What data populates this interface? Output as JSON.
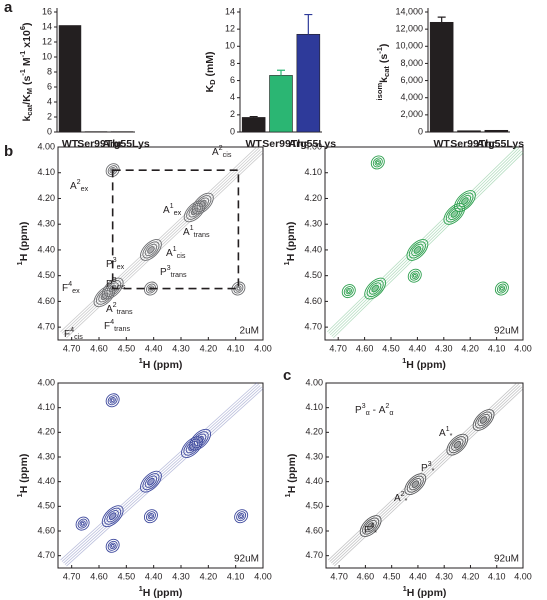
{
  "panel_labels": [
    "a",
    "b",
    "c"
  ],
  "chart_data": [
    {
      "type": "bar",
      "ylabel": [
        {
          "text": "k"
        },
        {
          "sub": "cat"
        },
        {
          "text": "/K"
        },
        {
          "sub": "M"
        },
        {
          "text": " (s"
        },
        {
          "sup": "-1"
        },
        {
          "text": " M"
        },
        {
          "sup": "-1"
        },
        {
          "text": " x10"
        },
        {
          "sup": "6"
        },
        {
          "text": ")"
        }
      ],
      "categories": [
        "WT",
        "Ser99Thr",
        "Arg55Lys"
      ],
      "values": [
        14.2,
        0.05,
        0.05
      ],
      "colors": [
        "#231f20",
        "#231f20",
        "#231f20"
      ],
      "ylim": [
        0,
        16
      ],
      "yticks": [
        0,
        2,
        4,
        6,
        8,
        10,
        12,
        14,
        16
      ]
    },
    {
      "type": "bar",
      "ylabel": [
        {
          "text": "K"
        },
        {
          "sub": "D"
        },
        {
          "text": " (mM)"
        }
      ],
      "categories": [
        "WT",
        "Ser99Thr",
        "Arg55Lys"
      ],
      "values": [
        1.7,
        6.6,
        11.4
      ],
      "errors": [
        0.1,
        0.6,
        2.3
      ],
      "colors": [
        "#231f20",
        "#2bb673",
        "#2e3a9a"
      ],
      "ylim": [
        0,
        14
      ],
      "yticks": [
        0,
        2,
        4,
        6,
        8,
        10,
        12,
        14
      ]
    },
    {
      "type": "bar",
      "ylabel": [
        {
          "sup": "isom"
        },
        {
          "text": "k"
        },
        {
          "sub": "cat"
        },
        {
          "text": " (s"
        },
        {
          "sup": "-1"
        },
        {
          "text": ")"
        }
      ],
      "categories": [
        "WT",
        "Ser99Thr",
        "Arg55Lys"
      ],
      "values": [
        12800,
        150,
        200
      ],
      "errors": [
        600,
        0,
        0
      ],
      "colors": [
        "#231f20",
        "#231f20",
        "#231f20"
      ],
      "ylim": [
        0,
        14000
      ],
      "yticks": [
        0,
        {
          "value": 2000,
          "label": "2,000"
        },
        {
          "value": 4000,
          "label": "4,000"
        },
        {
          "value": 6000,
          "label": "6,000"
        },
        {
          "value": 8000,
          "label": "8,000"
        },
        {
          "value": 10000,
          "label": "10,000"
        },
        {
          "value": 12000,
          "label": "12,000"
        },
        {
          "value": 14000,
          "label": "14,000"
        }
      ]
    },
    {
      "type": "contour",
      "color": "#6d6e71",
      "concentration": "2uM",
      "xlabel": [
        {
          "sup": "1"
        },
        {
          "text": "H (ppm)"
        }
      ],
      "ylabel": [
        {
          "sup": "1"
        },
        {
          "text": "H (ppm)"
        }
      ],
      "xlim": [
        4.75,
        4.0
      ],
      "ylim": [
        4.0,
        4.75
      ],
      "xticks": [
        {
          "value": 4.7,
          "label": "4.70"
        },
        {
          "value": 4.6,
          "label": "4.60"
        },
        {
          "value": 4.5,
          "label": "4.50"
        },
        {
          "value": 4.4,
          "label": "4.40"
        },
        {
          "value": 4.3,
          "label": "4.30"
        },
        {
          "value": 4.2,
          "label": "4.20"
        },
        {
          "value": 4.1,
          "label": "4.10"
        },
        {
          "value": 4.0,
          "label": "4.00"
        }
      ],
      "yticks": [
        {
          "value": 4.0,
          "label": "4.00"
        },
        {
          "value": 4.1,
          "label": "4.10"
        },
        {
          "value": 4.2,
          "label": "4.20"
        },
        {
          "value": 4.3,
          "label": "4.30"
        },
        {
          "value": 4.4,
          "label": "4.40"
        },
        {
          "value": 4.5,
          "label": "4.50"
        },
        {
          "value": 4.6,
          "label": "4.60"
        },
        {
          "value": 4.7,
          "label": "4.70"
        }
      ],
      "x": [
        4.58,
        4.55,
        4.41,
        4.25,
        4.22,
        4.55,
        4.09,
        4.41
      ],
      "y": [
        4.58,
        4.55,
        4.4,
        4.25,
        4.22,
        4.09,
        4.55,
        4.55
      ],
      "annotations": [
        [
          {
            "text": "A"
          },
          {
            "sup": "2"
          },
          {
            "sub": "ex"
          }
        ],
        [
          {
            "text": "A"
          },
          {
            "sup": "2"
          },
          {
            "sub": "cis"
          }
        ],
        [
          {
            "text": "A"
          },
          {
            "sup": "1"
          },
          {
            "sub": "ex"
          }
        ],
        [
          {
            "text": "A"
          },
          {
            "sup": "1"
          },
          {
            "sub": "trans"
          }
        ],
        [
          {
            "text": "A"
          },
          {
            "sup": "1"
          },
          {
            "sub": "cis"
          }
        ],
        [
          {
            "text": "P"
          },
          {
            "sup": "3"
          },
          {
            "sub": "ex"
          }
        ],
        [
          {
            "text": "P"
          },
          {
            "sup": "3"
          },
          {
            "sub": "trans"
          }
        ],
        [
          {
            "text": "P"
          },
          {
            "sup": "3"
          },
          {
            "sub": "cis"
          }
        ],
        [
          {
            "text": "F"
          },
          {
            "sup": "4"
          },
          {
            "sub": "ex"
          }
        ],
        [
          {
            "text": "A"
          },
          {
            "sup": "2"
          },
          {
            "sub": "trans"
          }
        ],
        [
          {
            "text": "F"
          },
          {
            "sup": "4"
          },
          {
            "sub": "trans"
          }
        ],
        [
          {
            "text": "F"
          },
          {
            "sup": "4"
          },
          {
            "sub": "cis"
          }
        ]
      ]
    },
    {
      "type": "contour",
      "color": "#2ea04f",
      "concentration": "92uM",
      "xlabel": [
        {
          "sup": "1"
        },
        {
          "text": "H (ppm)"
        }
      ],
      "ylabel": [
        {
          "sup": "1"
        },
        {
          "text": "H (ppm)"
        }
      ],
      "xlim": [
        4.75,
        4.0
      ],
      "ylim": [
        4.0,
        4.75
      ],
      "xticks": [
        {
          "value": 4.7,
          "label": "4.70"
        },
        {
          "value": 4.6,
          "label": "4.60"
        },
        {
          "value": 4.5,
          "label": "4.50"
        },
        {
          "value": 4.4,
          "label": "4.40"
        },
        {
          "value": 4.3,
          "label": "4.30"
        },
        {
          "value": 4.2,
          "label": "4.20"
        },
        {
          "value": 4.1,
          "label": "4.10"
        },
        {
          "value": 4.0,
          "label": "4.00"
        }
      ],
      "yticks": [
        {
          "value": 4.0,
          "label": "4.00"
        },
        {
          "value": 4.1,
          "label": "4.10"
        },
        {
          "value": 4.2,
          "label": "4.20"
        },
        {
          "value": 4.3,
          "label": "4.30"
        },
        {
          "value": 4.4,
          "label": "4.40"
        },
        {
          "value": 4.5,
          "label": "4.50"
        },
        {
          "value": 4.6,
          "label": "4.60"
        },
        {
          "value": 4.7,
          "label": "4.70"
        }
      ],
      "x": [
        4.56,
        4.4,
        4.26,
        4.22,
        4.55,
        4.08,
        4.66,
        4.41
      ],
      "y": [
        4.55,
        4.4,
        4.26,
        4.21,
        4.06,
        4.55,
        4.56,
        4.5
      ]
    },
    {
      "type": "contour",
      "color": "#3f4a9e",
      "concentration": "92uM",
      "xlabel": [
        {
          "sup": "1"
        },
        {
          "text": "H (ppm)"
        }
      ],
      "ylabel": [
        {
          "sup": "1"
        },
        {
          "text": "H (ppm)"
        }
      ],
      "xlim": [
        4.75,
        4.0
      ],
      "ylim": [
        4.0,
        4.75
      ],
      "xticks": [
        {
          "value": 4.7,
          "label": "4.70"
        },
        {
          "value": 4.6,
          "label": "4.60"
        },
        {
          "value": 4.5,
          "label": "4.50"
        },
        {
          "value": 4.4,
          "label": "4.40"
        },
        {
          "value": 4.3,
          "label": "4.30"
        },
        {
          "value": 4.2,
          "label": "4.20"
        },
        {
          "value": 4.1,
          "label": "4.10"
        },
        {
          "value": 4.0,
          "label": "4.00"
        }
      ],
      "yticks": [
        {
          "value": 4.0,
          "label": "4.00"
        },
        {
          "value": 4.1,
          "label": "4.10"
        },
        {
          "value": 4.2,
          "label": "4.20"
        },
        {
          "value": 4.3,
          "label": "4.30"
        },
        {
          "value": 4.4,
          "label": "4.40"
        },
        {
          "value": 4.5,
          "label": "4.50"
        },
        {
          "value": 4.6,
          "label": "4.60"
        },
        {
          "value": 4.7,
          "label": "4.70"
        }
      ],
      "x": [
        4.55,
        4.41,
        4.26,
        4.23,
        4.55,
        4.08,
        4.66,
        4.41,
        4.55
      ],
      "y": [
        4.54,
        4.4,
        4.26,
        4.23,
        4.07,
        4.54,
        4.57,
        4.54,
        4.66
      ]
    },
    {
      "type": "contour",
      "color": "#58595b",
      "concentration": "92uM",
      "xlabel": [
        {
          "sup": "1"
        },
        {
          "text": "H (ppm)"
        }
      ],
      "ylabel": [
        {
          "sup": "1"
        },
        {
          "text": "H (ppm)"
        }
      ],
      "xlim": [
        4.75,
        4.0
      ],
      "ylim": [
        4.0,
        4.75
      ],
      "xticks": [
        {
          "value": 4.7,
          "label": "4.70"
        },
        {
          "value": 4.6,
          "label": "4.60"
        },
        {
          "value": 4.5,
          "label": "4.50"
        },
        {
          "value": 4.4,
          "label": "4.40"
        },
        {
          "value": 4.3,
          "label": "4.30"
        },
        {
          "value": 4.2,
          "label": "4.20"
        },
        {
          "value": 4.1,
          "label": "4.10"
        },
        {
          "value": 4.0,
          "label": "4.00"
        }
      ],
      "yticks": [
        {
          "value": 4.0,
          "label": "4.00"
        },
        {
          "value": 4.1,
          "label": "4.10"
        },
        {
          "value": 4.2,
          "label": "4.20"
        },
        {
          "value": 4.3,
          "label": "4.30"
        },
        {
          "value": 4.4,
          "label": "4.40"
        },
        {
          "value": 4.5,
          "label": "4.50"
        },
        {
          "value": 4.6,
          "label": "4.60"
        },
        {
          "value": 4.7,
          "label": "4.70"
        }
      ],
      "x": [
        4.58,
        4.41,
        4.25,
        4.15
      ],
      "y": [
        4.58,
        4.41,
        4.25,
        4.15
      ],
      "annotations": [
        [
          {
            "text": "P"
          },
          {
            "sup": "3"
          },
          {
            "sub": "α"
          },
          {
            "text": " - A"
          },
          {
            "sup": "2"
          },
          {
            "sub": "α"
          }
        ],
        [
          {
            "text": "A"
          },
          {
            "sup": "1"
          },
          {
            "sub": "*"
          }
        ],
        [
          {
            "text": "P"
          },
          {
            "sup": "3"
          },
          {
            "sub": "*"
          }
        ],
        [
          {
            "text": "A"
          },
          {
            "sup": "2"
          },
          {
            "sub": "*"
          }
        ],
        [
          {
            "text": "F"
          },
          {
            "sup": "4"
          },
          {
            "sub": "*"
          }
        ]
      ]
    }
  ]
}
